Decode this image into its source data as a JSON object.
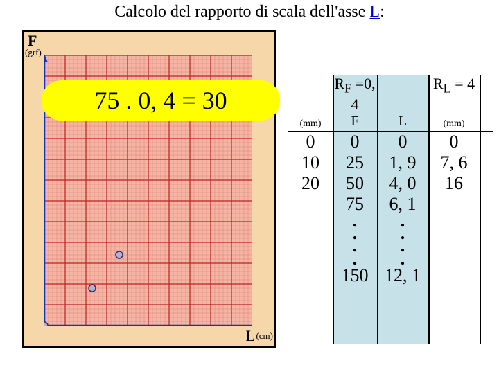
{
  "title_prefix": "Calcolo del rapporto di scala dell'asse ",
  "title_underline": "L",
  "title_suffix": ":",
  "axis": {
    "f_label": "F",
    "f_unit": "(grf)",
    "l_label": "L",
    "l_unit": "(cm)"
  },
  "equation": "75 . 0, 4 = 30",
  "table": {
    "rf_label": "R",
    "rf_sub": "F",
    "rf_val": " =0, 4",
    "rl_label": "R",
    "rl_sub": "L",
    "rl_val": " = 4",
    "mm": "(mm)",
    "col_f": "F",
    "col_l": "L",
    "rows": [
      {
        "c1": "0",
        "c2": "0",
        "c3": "0",
        "c4": "0"
      },
      {
        "c1": "10",
        "c2": "25",
        "c3": "1, 9",
        "c4": "7, 6"
      },
      {
        "c1": "20",
        "c2": "50",
        "c3": "4, 0",
        "c4": "16"
      },
      {
        "c1": "",
        "c2": "75",
        "c3": "6, 1",
        "c4": ""
      }
    ],
    "dots": [
      ".",
      ".",
      ".",
      "."
    ],
    "last": {
      "c2": "150",
      "c3": "12, 1"
    }
  },
  "chart": {
    "frame_bg": "#f6d7a9",
    "grid_bg": "#f4b5a5",
    "major_grid": "#c02020",
    "minor_grid": "#e08070",
    "axis_color": "#1030c0",
    "point_fill": "#b0b0d0",
    "point_stroke": "#303060",
    "cols": 10,
    "rows": 13,
    "minor": 5,
    "points": [
      {
        "x": 0,
        "y": 13
      },
      {
        "x": 2.3,
        "y": 11.2
      },
      {
        "x": 3.6,
        "y": 9.6
      }
    ]
  },
  "colors": {
    "shade": "#c7e1e8",
    "eq_bg": "#ffff00"
  }
}
